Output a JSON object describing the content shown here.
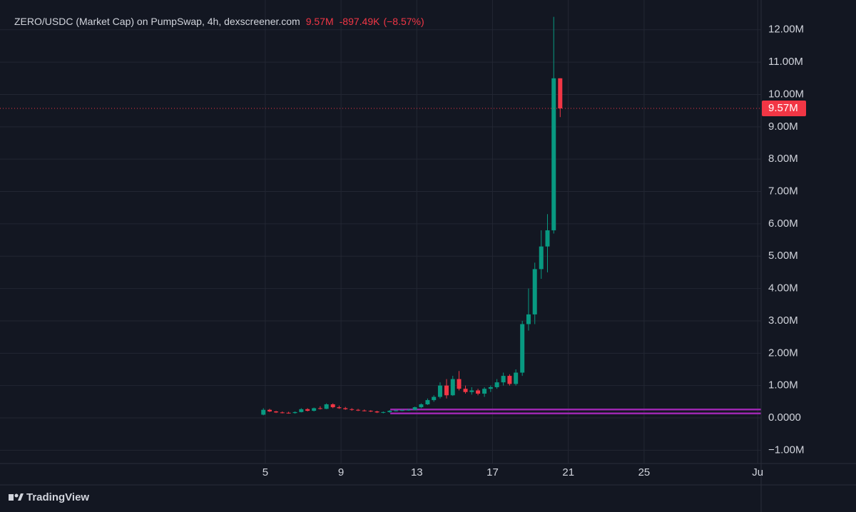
{
  "chart_data": {
    "type": "candlestick",
    "header": {
      "symbol": "ZERO/USDC (Market Cap) on PumpSwap, 4h, dexscreener.com",
      "price": "9.57M",
      "change": "-897.49K",
      "change_pct": "(−8.57%)"
    },
    "x": [
      4.9,
      5.23,
      5.57,
      5.9,
      6.23,
      6.57,
      6.9,
      7.23,
      7.57,
      7.9,
      8.23,
      8.57,
      8.9,
      9.23,
      9.57,
      9.9,
      10.23,
      10.57,
      10.9,
      11.23,
      11.57,
      11.9,
      12.23,
      12.57,
      12.9,
      13.23,
      13.57,
      13.9,
      14.23,
      14.57,
      14.9,
      15.23,
      15.57,
      15.9,
      16.23,
      16.57,
      16.9,
      17.23,
      17.57,
      17.9,
      18.23,
      18.57,
      18.9,
      19.23,
      19.57,
      19.9,
      20.23,
      20.57
    ],
    "open": [
      0.1,
      0.25,
      0.2,
      0.17,
      0.16,
      0.15,
      0.18,
      0.27,
      0.22,
      0.3,
      0.28,
      0.42,
      0.33,
      0.3,
      0.27,
      0.25,
      0.23,
      0.22,
      0.2,
      0.17,
      0.18,
      0.22,
      0.23,
      0.24,
      0.25,
      0.33,
      0.42,
      0.55,
      0.65,
      1.0,
      0.7,
      1.2,
      0.9,
      0.8,
      0.85,
      0.75,
      0.9,
      0.95,
      1.1,
      1.3,
      1.05,
      1.4,
      2.9,
      3.2,
      4.6,
      5.3,
      5.8,
      10.5
    ],
    "high": [
      0.3,
      0.28,
      0.22,
      0.2,
      0.19,
      0.2,
      0.3,
      0.3,
      0.32,
      0.36,
      0.45,
      0.45,
      0.38,
      0.34,
      0.3,
      0.28,
      0.26,
      0.24,
      0.22,
      0.2,
      0.24,
      0.26,
      0.27,
      0.28,
      0.35,
      0.45,
      0.6,
      0.7,
      1.1,
      1.2,
      1.3,
      1.45,
      1.0,
      0.95,
      0.9,
      0.95,
      1.0,
      1.2,
      1.4,
      1.35,
      1.5,
      3.0,
      4.0,
      4.8,
      5.8,
      6.3,
      12.4,
      10.5
    ],
    "low": [
      0.08,
      0.18,
      0.15,
      0.14,
      0.13,
      0.13,
      0.17,
      0.2,
      0.2,
      0.26,
      0.27,
      0.3,
      0.28,
      0.25,
      0.22,
      0.21,
      0.2,
      0.18,
      0.15,
      0.14,
      0.16,
      0.2,
      0.21,
      0.22,
      0.24,
      0.3,
      0.4,
      0.5,
      0.6,
      0.6,
      0.68,
      0.85,
      0.75,
      0.72,
      0.7,
      0.65,
      0.8,
      0.9,
      1.0,
      1.0,
      1.0,
      1.3,
      2.7,
      2.9,
      4.3,
      4.5,
      5.7,
      9.3
    ],
    "close": [
      0.25,
      0.2,
      0.17,
      0.16,
      0.15,
      0.18,
      0.27,
      0.22,
      0.3,
      0.28,
      0.42,
      0.33,
      0.3,
      0.27,
      0.25,
      0.23,
      0.22,
      0.2,
      0.17,
      0.18,
      0.22,
      0.23,
      0.24,
      0.25,
      0.33,
      0.42,
      0.55,
      0.65,
      1.0,
      0.7,
      1.2,
      0.9,
      0.8,
      0.85,
      0.75,
      0.9,
      0.95,
      1.1,
      1.3,
      1.05,
      1.4,
      2.9,
      3.2,
      4.6,
      5.3,
      5.8,
      10.5,
      9.57
    ],
    "up_color": "#089981",
    "down_color": "#f23645",
    "last_price": 9.57,
    "last_price_label": "9.57M",
    "levels": [
      0.14,
      0.26
    ],
    "level_start": 11.6,
    "level_color": "#9c27b0",
    "xlim": [
      -8.63,
      31.18
    ],
    "xticks": [
      5,
      9,
      13,
      17,
      21,
      25,
      {
        "value": 31,
        "label": "Ju"
      }
    ],
    "ylim": [
      -1.41,
      12.7
    ],
    "yticks": [
      {
        "value": -1,
        "label": "−1.00M"
      },
      {
        "value": 0,
        "label": "0.0000"
      },
      {
        "value": 1,
        "label": "1.00M"
      },
      {
        "value": 2,
        "label": "2.00M"
      },
      {
        "value": 3,
        "label": "3.00M"
      },
      {
        "value": 4,
        "label": "4.00M"
      },
      {
        "value": 5,
        "label": "5.00M"
      },
      {
        "value": 6,
        "label": "6.00M"
      },
      {
        "value": 7,
        "label": "7.00M"
      },
      {
        "value": 8,
        "label": "8.00M"
      },
      {
        "value": 9,
        "label": "9.00M"
      },
      {
        "value": 10,
        "label": "10.00M"
      },
      {
        "value": 11,
        "label": "11.00M"
      },
      {
        "value": 12,
        "label": "12.00M"
      }
    ],
    "grid": true,
    "branding": "TradingView"
  }
}
